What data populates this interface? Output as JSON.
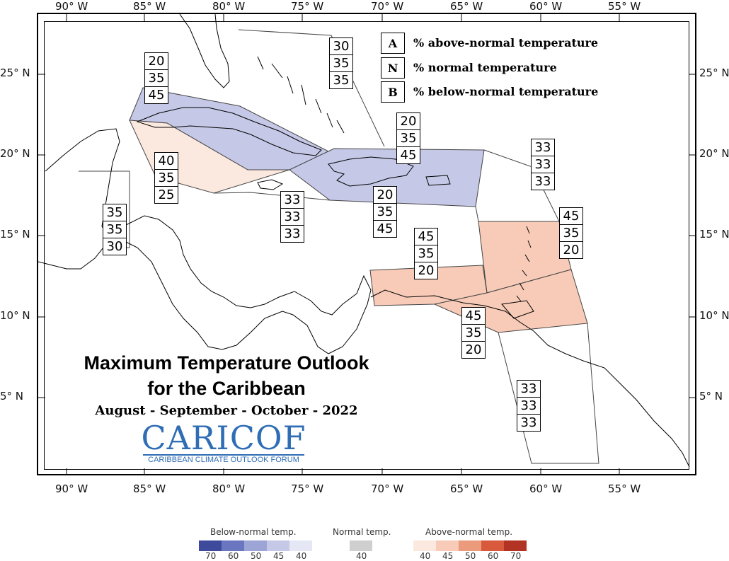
{
  "map": {
    "lon_labels": [
      "90° W",
      "85° W",
      "80° W",
      "75° W",
      "70° W",
      "65° W",
      "60° W",
      "55° W"
    ],
    "lat_labels": [
      "25° N",
      "20° N",
      "15° N",
      "10° N",
      "5° N"
    ],
    "regions": [
      {
        "id": "cuba-bahamas-west",
        "values": [
          "20",
          "35",
          "45"
        ]
      },
      {
        "id": "bahamas-north",
        "values": [
          "30",
          "35",
          "35"
        ]
      },
      {
        "id": "hispaniola-east",
        "values": [
          "20",
          "35",
          "45"
        ]
      },
      {
        "id": "leeward-north",
        "values": [
          "33",
          "33",
          "33"
        ]
      },
      {
        "id": "caribbean-west",
        "values": [
          "40",
          "35",
          "25"
        ]
      },
      {
        "id": "jamaica",
        "values": [
          "33",
          "33",
          "33"
        ]
      },
      {
        "id": "hispaniola-south",
        "values": [
          "20",
          "35",
          "45"
        ]
      },
      {
        "id": "belize",
        "values": [
          "35",
          "35",
          "30"
        ]
      },
      {
        "id": "leeward-islands",
        "values": [
          "45",
          "35",
          "20"
        ]
      },
      {
        "id": "abc-islands",
        "values": [
          "45",
          "35",
          "20"
        ]
      },
      {
        "id": "trinidad",
        "values": [
          "45",
          "35",
          "20"
        ]
      },
      {
        "id": "guianas",
        "values": [
          "33",
          "33",
          "33"
        ]
      }
    ],
    "colors": {
      "below_light": "#c5c8e6",
      "above_light": "#f7cbb8",
      "above_pale": "#fbe8df"
    }
  },
  "key": [
    {
      "letter": "A",
      "text": "% above-normal temperature"
    },
    {
      "letter": "N",
      "text": "% normal temperature"
    },
    {
      "letter": "B",
      "text": "% below-normal temperature"
    }
  ],
  "title": {
    "line1": "Maximum Temperature Outlook",
    "line2": "for the Caribbean",
    "period": "August - September - October - 2022"
  },
  "logo": {
    "word": "CARICOF",
    "subtitle": "CARIBBEAN CLIMATE OUTLOOK FORUM"
  },
  "colorbar": {
    "below_label": "Below-normal temp.",
    "normal_label": "Normal temp.",
    "above_label": "Above-normal temp.",
    "below_ticks": [
      "70",
      "60",
      "50",
      "45",
      "40"
    ],
    "normal_ticks": [
      "40"
    ],
    "above_ticks": [
      "40",
      "45",
      "50",
      "60",
      "70"
    ],
    "below_colors": [
      "#3e4b9c",
      "#6a76bf",
      "#9da4d6",
      "#c5c8e6",
      "#e6e7f5"
    ],
    "normal_colors": [
      "#cfcfcf"
    ],
    "above_colors": [
      "#fbe8df",
      "#f7cbb8",
      "#ec9a7c",
      "#d9593d",
      "#b23224"
    ]
  }
}
